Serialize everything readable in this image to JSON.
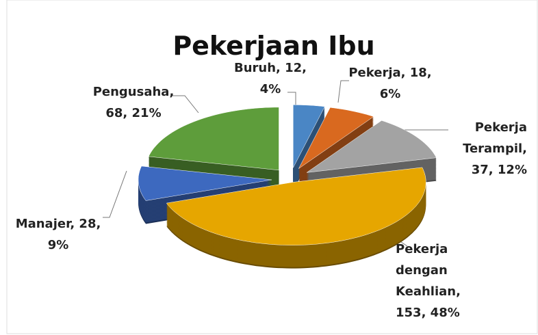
{
  "chart_data": {
    "type": "pie3d",
    "title": "Pekerjaan Ibu",
    "values": [
      12,
      18,
      37,
      153,
      28,
      68
    ],
    "value_labels": [
      [
        "Buruh, 12,",
        "4%"
      ],
      [
        "Pekerja, 18,",
        "6%"
      ],
      [
        "Pekerja",
        "Terampil,",
        "37, 12%"
      ],
      [
        "Pekerja",
        "dengan",
        "Keahlian,",
        "153, 48%"
      ],
      [
        "Manajer, 28,",
        "9%"
      ],
      [
        "Pengusaha,",
        "68, 21%"
      ]
    ],
    "colors": [
      "#4a86c5",
      "#d9691f",
      "#a3a3a3",
      "#e6a600",
      "#3d69bf",
      "#5e9d3b"
    ]
  }
}
